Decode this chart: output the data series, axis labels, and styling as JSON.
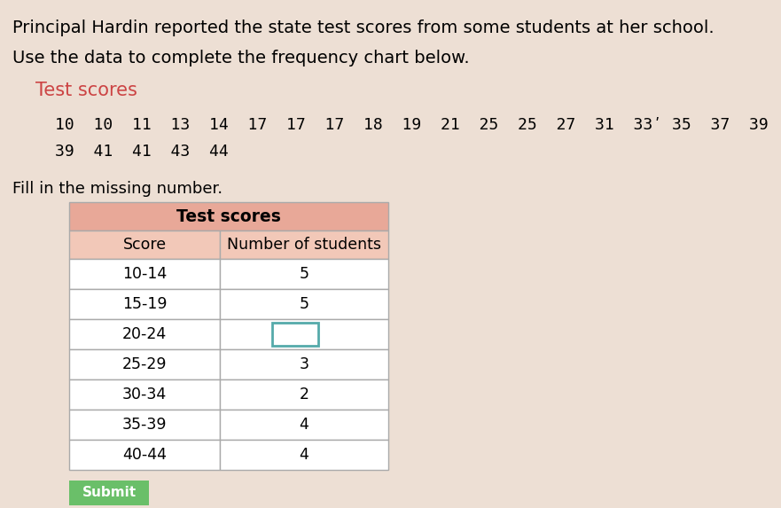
{
  "title_text": "Principal Hardin reported the state test scores from some students at her school.",
  "subtitle_text": "Use the data to complete the frequency chart below.",
  "data_label": "Test scores",
  "scores_line1": "10  10  11  13  14  17  17  17  18  19  21  25  25  27  31  33ʹ 35  37  39",
  "scores_line2": "39  41  41  43  44",
  "fill_text": "Fill in the missing number.",
  "table_title": "Test scores",
  "col1_header": "Score",
  "col2_header": "Number of students",
  "rows": [
    {
      "score": "10-14",
      "count": "5",
      "missing": false
    },
    {
      "score": "15-19",
      "count": "5",
      "missing": false
    },
    {
      "score": "20-24",
      "count": "",
      "missing": true
    },
    {
      "score": "25-29",
      "count": "3",
      "missing": false
    },
    {
      "score": "30-34",
      "count": "2",
      "missing": false
    },
    {
      "score": "35-39",
      "count": "4",
      "missing": false
    },
    {
      "score": "40-44",
      "count": "4",
      "missing": false
    }
  ],
  "submit_btn_color": "#6abf69",
  "submit_btn_text": "Submit",
  "background_color": "#eddfd4",
  "table_header_color": "#e8a898",
  "table_subheader_color": "#f2c8b8",
  "table_row_bg": "#ffffff",
  "table_border_color": "#aaaaaa",
  "data_label_color": "#cc4444",
  "input_box_color": "#55aaaa",
  "title_fontsize": 14,
  "subtitle_fontsize": 14,
  "data_label_fontsize": 15,
  "scores_fontsize": 13,
  "fill_fontsize": 13,
  "table_fontsize": 12.5
}
